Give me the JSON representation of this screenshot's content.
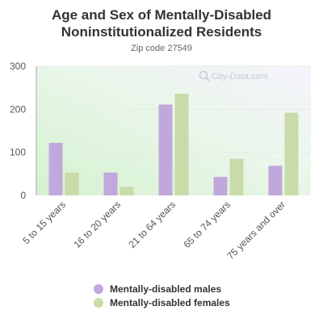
{
  "chart_data": {
    "type": "bar",
    "title_lines": [
      "Age and Sex of Mentally-Disabled",
      "Noninstitutionalized Residents"
    ],
    "subtitle": "Zip code 27549",
    "categories": [
      "5 to 15 years",
      "16 to 20 years",
      "21 to 64 years",
      "65 to 74 years",
      "75 years and over"
    ],
    "series": [
      {
        "name": "Mentally-disabled males",
        "values": [
          122,
          53,
          211,
          43,
          69
        ],
        "color": "#c0a8dc"
      },
      {
        "name": "Mentally-disabled females",
        "values": [
          53,
          20,
          236,
          85,
          192
        ],
        "color": "#c8dba8"
      }
    ],
    "ylim": [
      0,
      300
    ],
    "yticks": [
      0,
      100,
      200,
      300
    ],
    "grid": true,
    "legend_position": "bottom",
    "watermark": "City-Data.com"
  }
}
